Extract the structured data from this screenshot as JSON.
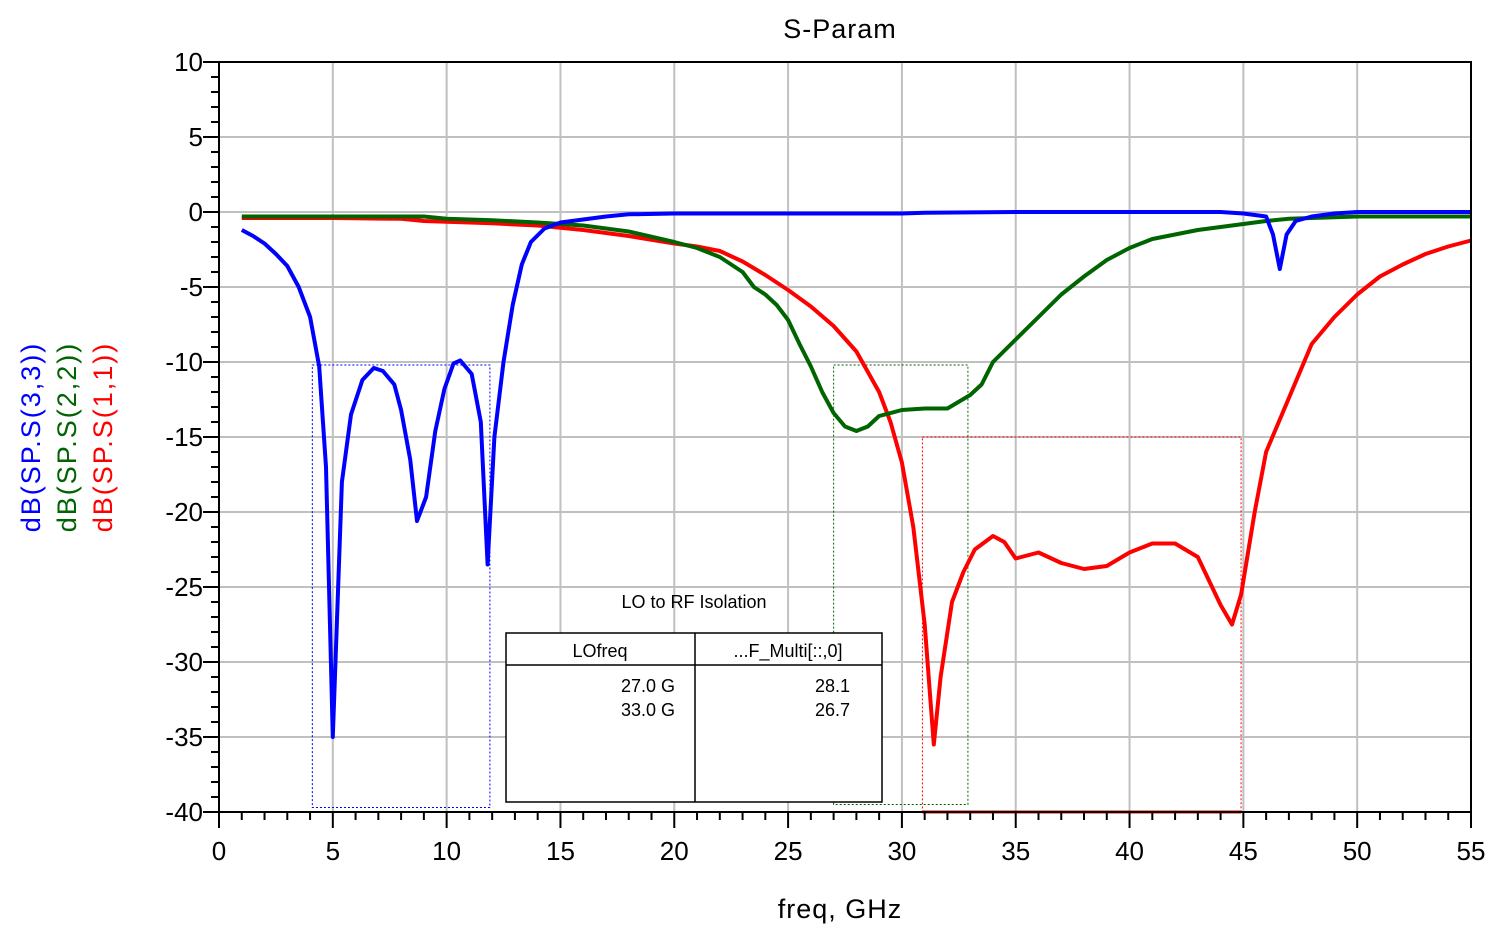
{
  "chart_data": {
    "type": "line",
    "title": "S-Param",
    "xlabel": "freq, GHz",
    "xlim": [
      0,
      55
    ],
    "ylim": [
      -40,
      10
    ],
    "x_ticks": [
      0,
      5,
      10,
      15,
      20,
      25,
      30,
      35,
      40,
      45,
      50,
      55
    ],
    "y_ticks": [
      10,
      5,
      0,
      -5,
      -10,
      -15,
      -20,
      -25,
      -30,
      -35,
      -40
    ],
    "grid": true,
    "series": [
      {
        "name": "dB(SP.S(3,3))",
        "color": "#0000ff",
        "points": [
          [
            1,
            -1.2
          ],
          [
            1.5,
            -1.6
          ],
          [
            2,
            -2.1
          ],
          [
            2.5,
            -2.8
          ],
          [
            3,
            -3.6
          ],
          [
            3.5,
            -5
          ],
          [
            4,
            -7
          ],
          [
            4.4,
            -10.3
          ],
          [
            4.7,
            -17
          ],
          [
            5,
            -35
          ],
          [
            5.4,
            -18
          ],
          [
            5.8,
            -13.5
          ],
          [
            6.3,
            -11.2
          ],
          [
            6.8,
            -10.4
          ],
          [
            7.2,
            -10.6
          ],
          [
            7.7,
            -11.5
          ],
          [
            8,
            -13.2
          ],
          [
            8.4,
            -16.5
          ],
          [
            8.7,
            -20.6
          ],
          [
            9.1,
            -19
          ],
          [
            9.5,
            -14.6
          ],
          [
            9.9,
            -11.8
          ],
          [
            10.3,
            -10.1
          ],
          [
            10.6,
            -9.9
          ],
          [
            11.1,
            -10.8
          ],
          [
            11.5,
            -14
          ],
          [
            11.8,
            -23.5
          ],
          [
            12.1,
            -15
          ],
          [
            12.5,
            -10
          ],
          [
            12.9,
            -6.2
          ],
          [
            13.3,
            -3.5
          ],
          [
            13.7,
            -2
          ],
          [
            14.3,
            -1.1
          ],
          [
            15,
            -0.7
          ],
          [
            16,
            -0.5
          ],
          [
            17,
            -0.3
          ],
          [
            18,
            -0.15
          ],
          [
            20,
            -0.1
          ],
          [
            25,
            -0.1
          ],
          [
            30,
            -0.1
          ],
          [
            31,
            -0.05
          ],
          [
            35,
            0
          ],
          [
            40,
            0
          ],
          [
            44,
            0
          ],
          [
            45,
            -0.1
          ],
          [
            46,
            -0.3
          ],
          [
            46.3,
            -1.5
          ],
          [
            46.6,
            -3.8
          ],
          [
            46.9,
            -1.5
          ],
          [
            47.3,
            -0.6
          ],
          [
            48,
            -0.3
          ],
          [
            49,
            -0.1
          ],
          [
            50,
            0
          ],
          [
            55,
            0
          ]
        ]
      },
      {
        "name": "dB(SP.S(2,2))",
        "color": "#006400",
        "points": [
          [
            1,
            -0.3
          ],
          [
            5,
            -0.3
          ],
          [
            8,
            -0.3
          ],
          [
            9,
            -0.3
          ],
          [
            10,
            -0.45
          ],
          [
            12,
            -0.55
          ],
          [
            14,
            -0.7
          ],
          [
            16,
            -0.9
          ],
          [
            18,
            -1.3
          ],
          [
            20,
            -2
          ],
          [
            21,
            -2.4
          ],
          [
            22,
            -3
          ],
          [
            23,
            -4
          ],
          [
            23.5,
            -5
          ],
          [
            24,
            -5.5
          ],
          [
            24.5,
            -6.2
          ],
          [
            25,
            -7.2
          ],
          [
            25.5,
            -8.8
          ],
          [
            26,
            -10.3
          ],
          [
            26.5,
            -12
          ],
          [
            27,
            -13.4
          ],
          [
            27.5,
            -14.3
          ],
          [
            28,
            -14.6
          ],
          [
            28.5,
            -14.3
          ],
          [
            29,
            -13.6
          ],
          [
            30,
            -13.2
          ],
          [
            31,
            -13.1
          ],
          [
            32,
            -13.1
          ],
          [
            33,
            -12.2
          ],
          [
            33.5,
            -11.5
          ],
          [
            34,
            -10
          ],
          [
            35,
            -8.5
          ],
          [
            36,
            -7
          ],
          [
            37,
            -5.5
          ],
          [
            38,
            -4.3
          ],
          [
            39,
            -3.2
          ],
          [
            40,
            -2.4
          ],
          [
            41,
            -1.8
          ],
          [
            42,
            -1.5
          ],
          [
            43,
            -1.2
          ],
          [
            44,
            -1
          ],
          [
            45,
            -0.8
          ],
          [
            46,
            -0.6
          ],
          [
            47,
            -0.45
          ],
          [
            49,
            -0.35
          ],
          [
            50,
            -0.3
          ],
          [
            55,
            -0.3
          ]
        ]
      },
      {
        "name": "dB(SP.S(1,1))",
        "color": "#ff0000",
        "points": [
          [
            1,
            -0.4
          ],
          [
            5,
            -0.4
          ],
          [
            8,
            -0.45
          ],
          [
            9,
            -0.6
          ],
          [
            11,
            -0.7
          ],
          [
            12,
            -0.75
          ],
          [
            14,
            -0.9
          ],
          [
            16,
            -1.2
          ],
          [
            18,
            -1.6
          ],
          [
            20,
            -2.1
          ],
          [
            21,
            -2.3
          ],
          [
            22,
            -2.6
          ],
          [
            23,
            -3.3
          ],
          [
            24,
            -4.2
          ],
          [
            25,
            -5.2
          ],
          [
            26,
            -6.3
          ],
          [
            27,
            -7.6
          ],
          [
            28,
            -9.3
          ],
          [
            29,
            -12
          ],
          [
            29.5,
            -14
          ],
          [
            30,
            -16.7
          ],
          [
            30.5,
            -21
          ],
          [
            31,
            -27.5
          ],
          [
            31.4,
            -35.5
          ],
          [
            31.7,
            -31
          ],
          [
            32.2,
            -26
          ],
          [
            32.7,
            -24
          ],
          [
            33.2,
            -22.5
          ],
          [
            34,
            -21.6
          ],
          [
            34.5,
            -22
          ],
          [
            35,
            -23.1
          ],
          [
            36,
            -22.7
          ],
          [
            37,
            -23.4
          ],
          [
            38,
            -23.8
          ],
          [
            39,
            -23.6
          ],
          [
            40,
            -22.7
          ],
          [
            41,
            -22.1
          ],
          [
            42,
            -22.1
          ],
          [
            43,
            -23
          ],
          [
            44,
            -26.2
          ],
          [
            44.5,
            -27.5
          ],
          [
            44.9,
            -25.5
          ],
          [
            45.5,
            -20
          ],
          [
            46,
            -16
          ],
          [
            47,
            -12.4
          ],
          [
            48,
            -8.8
          ],
          [
            49,
            -7
          ],
          [
            50,
            -5.5
          ],
          [
            51,
            -4.3
          ],
          [
            52,
            -3.5
          ],
          [
            53,
            -2.8
          ],
          [
            54,
            -2.3
          ],
          [
            55,
            -1.9
          ]
        ]
      }
    ],
    "masks": [
      {
        "color": "#0000ff",
        "x1": 4.1,
        "x2": 11.9,
        "y_top": -10.2,
        "y_bottom": -39.7
      },
      {
        "color": "#006400",
        "x1": 27,
        "x2": 32.9,
        "y_top": -10.2,
        "y_bottom": -39.5
      },
      {
        "color": "#ff0000",
        "x1": 30.9,
        "x2": 44.9,
        "y_top": -15,
        "y_bottom": -40
      }
    ],
    "table": {
      "title": "LO to RF Isolation",
      "headers": [
        "LOfreq",
        "...F_Multi[::,0]"
      ],
      "rows": [
        [
          "27.0 G",
          "28.1"
        ],
        [
          "33.0 G",
          "26.7"
        ]
      ]
    }
  }
}
